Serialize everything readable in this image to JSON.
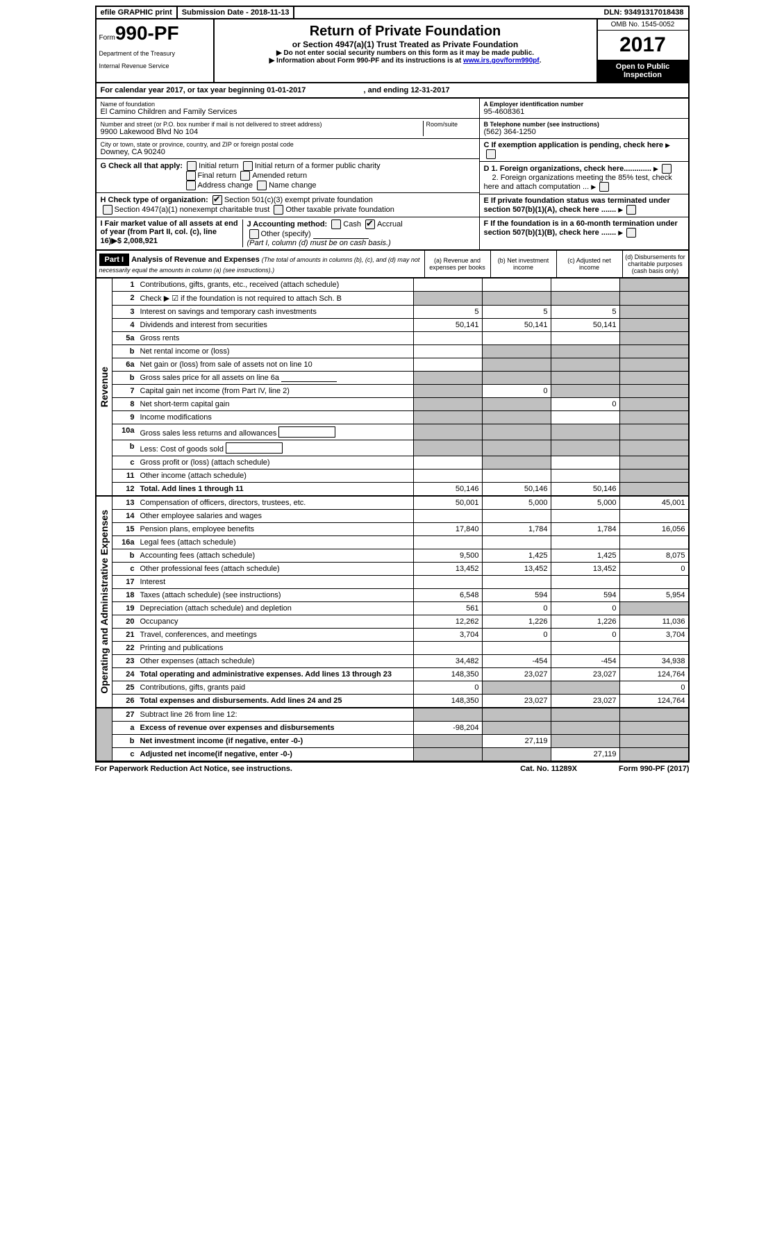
{
  "top_bar": {
    "efile": "efile GRAPHIC print",
    "submission": "Submission Date - 2018-11-13",
    "dln": "DLN: 93491317018438"
  },
  "header": {
    "form_prefix": "Form",
    "form_number": "990-PF",
    "dept1": "Department of the Treasury",
    "dept2": "Internal Revenue Service",
    "title": "Return of Private Foundation",
    "subtitle": "or Section 4947(a)(1) Trust Treated as Private Foundation",
    "instr1": "▶ Do not enter social security numbers on this form as it may be made public.",
    "instr2_pre": "▶ Information about Form 990-PF and its instructions is at ",
    "instr2_link": "www.irs.gov/form990pf",
    "omb": "OMB No. 1545-0052",
    "year": "2017",
    "inspect": "Open to Public Inspection"
  },
  "cal_year": "For calendar year 2017, or tax year beginning 01-01-2017",
  "cal_year_end": ", and ending 12-31-2017",
  "entity": {
    "name_label": "Name of foundation",
    "name": "El Camino Children and Family Services",
    "addr_label": "Number and street (or P.O. box number if mail is not delivered to street address)",
    "room_label": "Room/suite",
    "addr": "9900 Lakewood Blvd No 104",
    "city_label": "City or town, state or province, country, and ZIP or foreign postal code",
    "city": "Downey, CA 90240",
    "ein_label": "A Employer identification number",
    "ein": "95-4608361",
    "tel_label": "B Telephone number (see instructions)",
    "tel": "(562) 364-1250",
    "c_label": "C If exemption application is pending, check here",
    "d1": "D 1. Foreign organizations, check here.............",
    "d2": "2. Foreign organizations meeting the 85% test, check here and attach computation ...",
    "e_label": "E  If private foundation status was terminated under section 507(b)(1)(A), check here .......",
    "f_label": "F  If the foundation is in a 60-month termination under section 507(b)(1)(B), check here .......",
    "g_label": "G Check all that apply:",
    "g_opts": [
      "Initial return",
      "Initial return of a former public charity",
      "Final return",
      "Amended return",
      "Address change",
      "Name change"
    ],
    "h_label": "H Check type of organization:",
    "h_opt1": "Section 501(c)(3) exempt private foundation",
    "h_opt2": "Section 4947(a)(1) nonexempt charitable trust",
    "h_opt3": "Other taxable private foundation",
    "i_label": "I Fair market value of all assets at end of year (from Part II, col. (c), line 16)▶$ 2,008,921",
    "j_label": "J Accounting method:",
    "j_cash": "Cash",
    "j_accrual": "Accrual",
    "j_other": "Other (specify)",
    "j_note": "(Part I, column (d) must be on cash basis.)"
  },
  "part1": {
    "label": "Part I",
    "title": "Analysis of Revenue and Expenses",
    "title_note": "(The total of amounts in columns (b), (c), and (d) may not necessarily equal the amounts in column (a) (see instructions).)",
    "cols": {
      "a": "(a)   Revenue and expenses per books",
      "b": "(b)  Net investment income",
      "c": "(c)  Adjusted net income",
      "d": "(d)  Disbursements for charitable purposes (cash basis only)"
    }
  },
  "side_labels": {
    "revenue": "Revenue",
    "expenses": "Operating and Administrative Expenses"
  },
  "revenue_lines": [
    {
      "no": "1",
      "desc": "Contributions, gifts, grants, etc., received (attach schedule)",
      "a": "",
      "b": "",
      "c": "",
      "d": "",
      "shade_d": true
    },
    {
      "no": "2",
      "desc": "Check ▶ ☑ if the foundation is not required to attach Sch. B",
      "a": "",
      "b": "",
      "c": "",
      "d": "",
      "shade_all": true,
      "bold_not": true
    },
    {
      "no": "3",
      "desc": "Interest on savings and temporary cash investments",
      "a": "5",
      "b": "5",
      "c": "5",
      "d": "",
      "shade_d": true
    },
    {
      "no": "4",
      "desc": "Dividends and interest from securities",
      "a": "50,141",
      "b": "50,141",
      "c": "50,141",
      "d": "",
      "shade_d": true
    },
    {
      "no": "5a",
      "desc": "Gross rents",
      "a": "",
      "b": "",
      "c": "",
      "d": "",
      "shade_d": true
    },
    {
      "no": "b",
      "desc": "Net rental income or (loss)",
      "a": "",
      "b": "",
      "c": "",
      "d": "",
      "shade_bcd": true
    },
    {
      "no": "6a",
      "desc": "Net gain or (loss) from sale of assets not on line 10",
      "a": "",
      "b": "",
      "c": "",
      "d": "",
      "shade_bcd": true
    },
    {
      "no": "b",
      "desc": "Gross sales price for all assets on line 6a",
      "a": "",
      "b": "",
      "c": "",
      "d": "",
      "shade_all": true,
      "inline_blank": true
    },
    {
      "no": "7",
      "desc": "Capital gain net income (from Part IV, line 2)",
      "a": "",
      "b": "0",
      "c": "",
      "d": "",
      "shade_a": true,
      "shade_cd": true
    },
    {
      "no": "8",
      "desc": "Net short-term capital gain",
      "a": "",
      "b": "",
      "c": "0",
      "d": "",
      "shade_ab": true,
      "shade_d": true
    },
    {
      "no": "9",
      "desc": "Income modifications",
      "a": "",
      "b": "",
      "c": "",
      "d": "",
      "shade_ab": true,
      "shade_d": true
    },
    {
      "no": "10a",
      "desc": "Gross sales less returns and allowances",
      "a": "",
      "b": "",
      "c": "",
      "d": "",
      "shade_all": true,
      "inline_box": true
    },
    {
      "no": "b",
      "desc": "Less: Cost of goods sold",
      "a": "",
      "b": "",
      "c": "",
      "d": "",
      "shade_all": true,
      "inline_box": true
    },
    {
      "no": "c",
      "desc": "Gross profit or (loss) (attach schedule)",
      "a": "",
      "b": "",
      "c": "",
      "d": "",
      "shade_b": true,
      "shade_d": true
    },
    {
      "no": "11",
      "desc": "Other income (attach schedule)",
      "a": "",
      "b": "",
      "c": "",
      "d": "",
      "shade_d": true
    },
    {
      "no": "12",
      "desc": "Total. Add lines 1 through 11",
      "a": "50,146",
      "b": "50,146",
      "c": "50,146",
      "d": "",
      "bold": true,
      "shade_d": true
    }
  ],
  "expense_lines": [
    {
      "no": "13",
      "desc": "Compensation of officers, directors, trustees, etc.",
      "a": "50,001",
      "b": "5,000",
      "c": "5,000",
      "d": "45,001"
    },
    {
      "no": "14",
      "desc": "Other employee salaries and wages",
      "a": "",
      "b": "",
      "c": "",
      "d": ""
    },
    {
      "no": "15",
      "desc": "Pension plans, employee benefits",
      "a": "17,840",
      "b": "1,784",
      "c": "1,784",
      "d": "16,056"
    },
    {
      "no": "16a",
      "desc": "Legal fees (attach schedule)",
      "a": "",
      "b": "",
      "c": "",
      "d": ""
    },
    {
      "no": "b",
      "desc": "Accounting fees (attach schedule)",
      "a": "9,500",
      "b": "1,425",
      "c": "1,425",
      "d": "8,075"
    },
    {
      "no": "c",
      "desc": "Other professional fees (attach schedule)",
      "a": "13,452",
      "b": "13,452",
      "c": "13,452",
      "d": "0"
    },
    {
      "no": "17",
      "desc": "Interest",
      "a": "",
      "b": "",
      "c": "",
      "d": ""
    },
    {
      "no": "18",
      "desc": "Taxes (attach schedule) (see instructions)",
      "a": "6,548",
      "b": "594",
      "c": "594",
      "d": "5,954"
    },
    {
      "no": "19",
      "desc": "Depreciation (attach schedule) and depletion",
      "a": "561",
      "b": "0",
      "c": "0",
      "d": "",
      "shade_d": true
    },
    {
      "no": "20",
      "desc": "Occupancy",
      "a": "12,262",
      "b": "1,226",
      "c": "1,226",
      "d": "11,036"
    },
    {
      "no": "21",
      "desc": "Travel, conferences, and meetings",
      "a": "3,704",
      "b": "0",
      "c": "0",
      "d": "3,704"
    },
    {
      "no": "22",
      "desc": "Printing and publications",
      "a": "",
      "b": "",
      "c": "",
      "d": ""
    },
    {
      "no": "23",
      "desc": "Other expenses (attach schedule)",
      "a": "34,482",
      "b": "-454",
      "c": "-454",
      "d": "34,938"
    },
    {
      "no": "24",
      "desc": "Total operating and administrative expenses. Add lines 13 through 23",
      "a": "148,350",
      "b": "23,027",
      "c": "23,027",
      "d": "124,764",
      "bold": true
    },
    {
      "no": "25",
      "desc": "Contributions, gifts, grants paid",
      "a": "0",
      "b": "",
      "c": "",
      "d": "0",
      "shade_bc": true
    },
    {
      "no": "26",
      "desc": "Total expenses and disbursements. Add lines 24 and 25",
      "a": "148,350",
      "b": "23,027",
      "c": "23,027",
      "d": "124,764",
      "bold": true
    }
  ],
  "bottom_lines": [
    {
      "no": "27",
      "desc": "Subtract line 26 from line 12:",
      "a": "",
      "b": "",
      "c": "",
      "d": "",
      "shade_all": true
    },
    {
      "no": "a",
      "desc": "Excess of revenue over expenses and disbursements",
      "a": "-98,204",
      "b": "",
      "c": "",
      "d": "",
      "bold": true,
      "shade_bcd": true
    },
    {
      "no": "b",
      "desc": "Net investment income (if negative, enter -0-)",
      "a": "",
      "b": "27,119",
      "c": "",
      "d": "",
      "bold": true,
      "shade_a": true,
      "shade_cd": true
    },
    {
      "no": "c",
      "desc": "Adjusted net income(if negative, enter -0-)",
      "a": "",
      "b": "",
      "c": "27,119",
      "d": "",
      "bold": true,
      "shade_ab": true,
      "shade_d": true
    }
  ],
  "footer": {
    "left": "For Paperwork Reduction Act Notice, see instructions.",
    "center": "Cat. No. 11289X",
    "right": "Form 990-PF (2017)"
  }
}
